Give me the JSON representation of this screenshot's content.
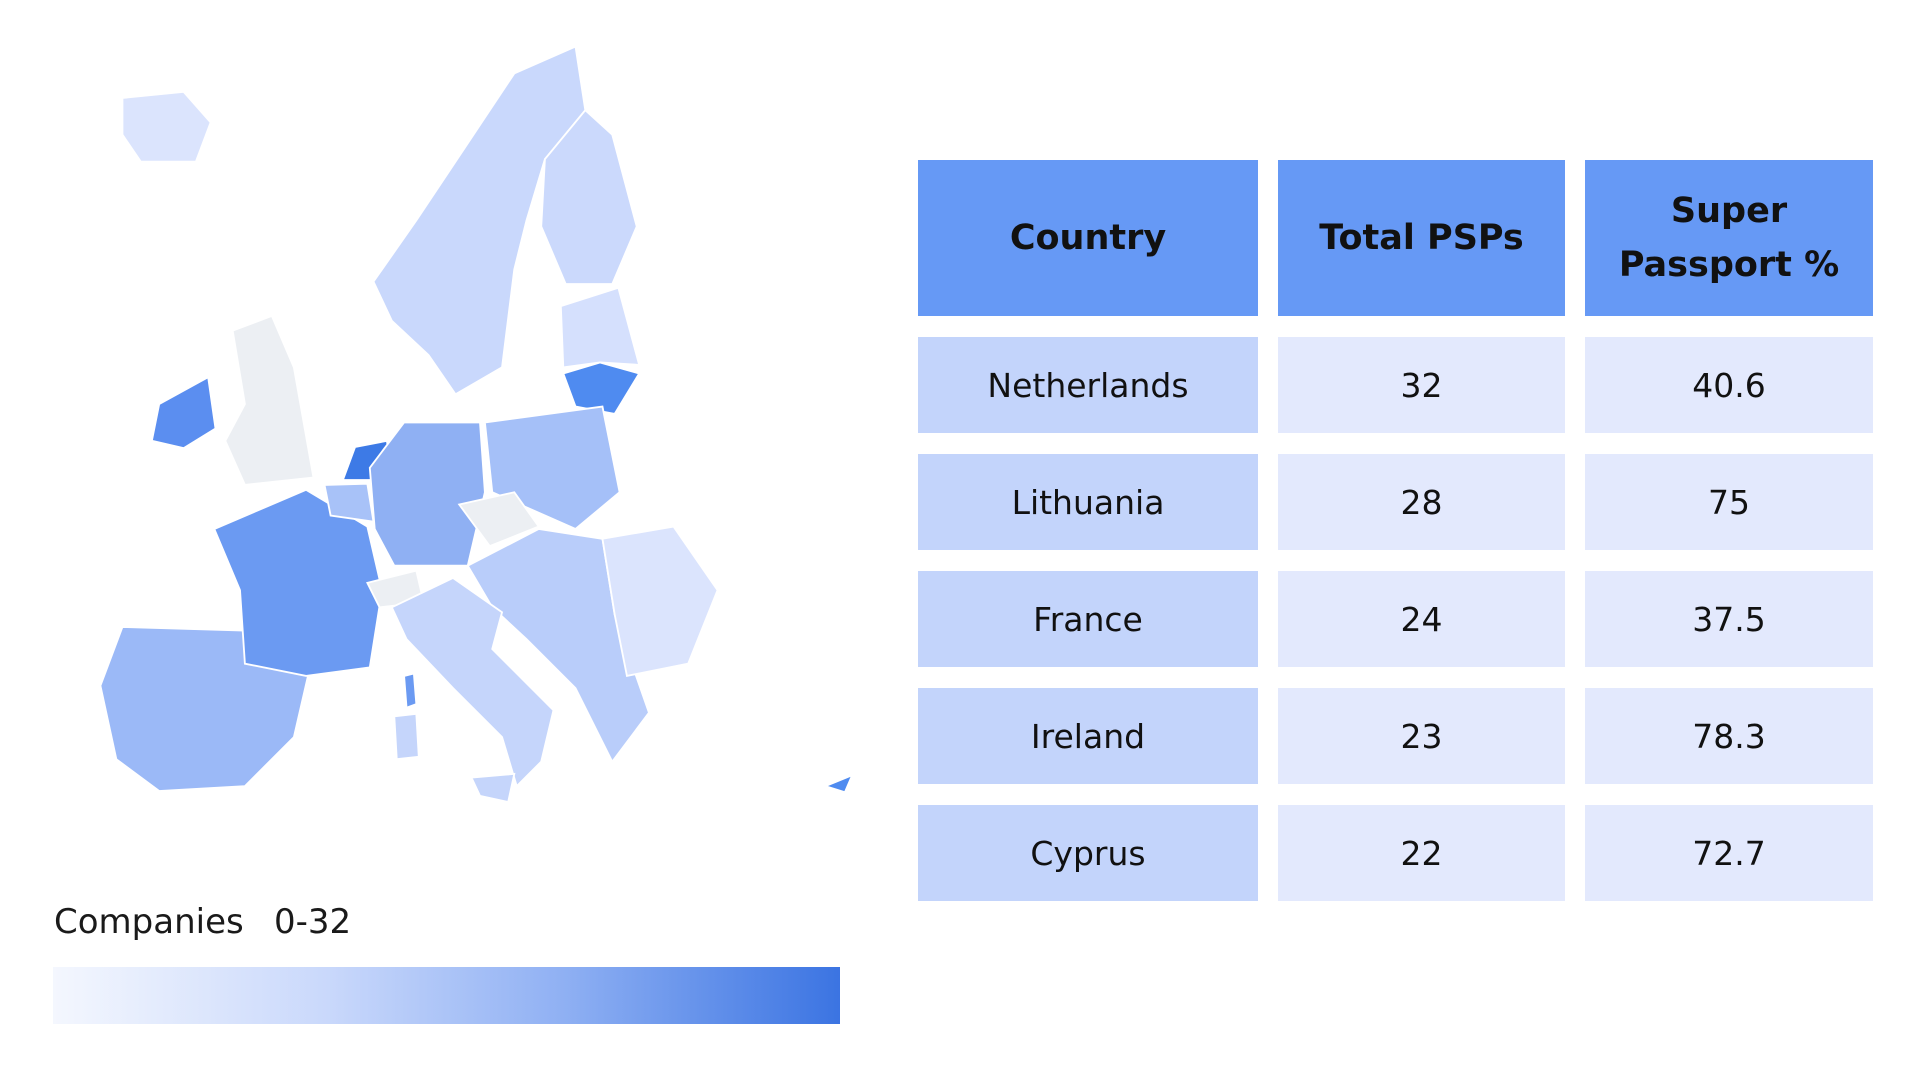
{
  "legend": {
    "label": "Companies",
    "range": "0-32"
  },
  "table": {
    "header": [
      "Country",
      "Total PSPs",
      "Super Passport %"
    ],
    "rows": [
      [
        "Netherlands",
        32,
        40.6
      ],
      [
        "Lithuania",
        28,
        75
      ],
      [
        "France",
        24,
        37.5
      ],
      [
        "Ireland",
        23,
        78.3
      ],
      [
        "Cyprus",
        22,
        72.7
      ]
    ]
  }
}
